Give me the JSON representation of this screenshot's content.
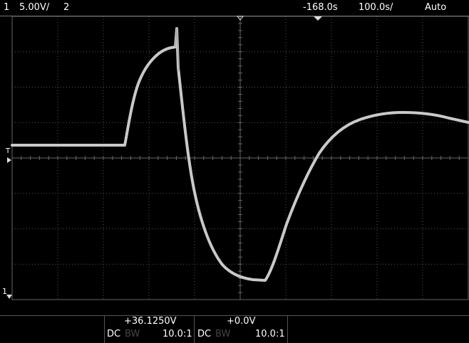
{
  "header": {
    "channel1_number": "1",
    "channel1_scale": "5.00V/",
    "channel2_number": "2",
    "delay": "-168.0s",
    "timebase": "100.0s/",
    "trigger_mode": "Auto"
  },
  "markers": {
    "trigger_level": "T",
    "ground_marker": "1"
  },
  "footer": {
    "ch1_offset": "+36.1250V",
    "ch2_offset": "+0.0V",
    "ch1_coupling": "DC",
    "ch1_bw": "BW",
    "ch1_probe": "10.0:1",
    "ch2_coupling": "DC",
    "ch2_bw": "BW",
    "ch2_probe": "10.0:1"
  },
  "colors": {
    "background": "#000000",
    "graticule": "#555555",
    "trace": "#c8c8c8",
    "text": "#ffffff"
  }
}
